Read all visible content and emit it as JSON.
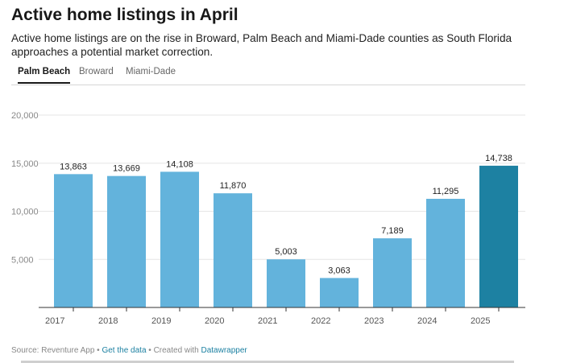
{
  "header": {
    "title": "Active home listings in April",
    "subtitle": "Active home listings are on the rise in Broward, Palm Beach and Miami-Dade counties as South Florida approaches a potential market correction."
  },
  "tabs": [
    {
      "label": "Palm Beach",
      "active": true
    },
    {
      "label": "Broward",
      "active": false
    },
    {
      "label": "Miami-Dade",
      "active": false
    }
  ],
  "chart_data": {
    "type": "bar",
    "title": "",
    "xlabel": "",
    "ylabel": "",
    "categories": [
      "2017",
      "2018",
      "2019",
      "2020",
      "2021",
      "2022",
      "2023",
      "2024",
      "2025"
    ],
    "values": [
      13863,
      13669,
      14108,
      11870,
      5003,
      3063,
      7189,
      11295,
      14738
    ],
    "value_labels": [
      "13,863",
      "13,669",
      "14,108",
      "11,870",
      "5,003",
      "3,063",
      "7,189",
      "11,295",
      "14,738"
    ],
    "yticks": [
      5000,
      10000,
      15000,
      20000
    ],
    "ytick_labels": [
      "5,000",
      "10,000",
      "15,000",
      "20,000"
    ],
    "ylim": [
      0,
      20000
    ],
    "grid": true,
    "colors": {
      "default": "#63b3dc",
      "highlight": "#1d81a2"
    },
    "highlight_index": 8
  },
  "footer": {
    "source": "Source: Reventure App",
    "sep1": " • ",
    "get_data": "Get the data",
    "sep2": " • Created with ",
    "tool": "Datawrapper"
  }
}
